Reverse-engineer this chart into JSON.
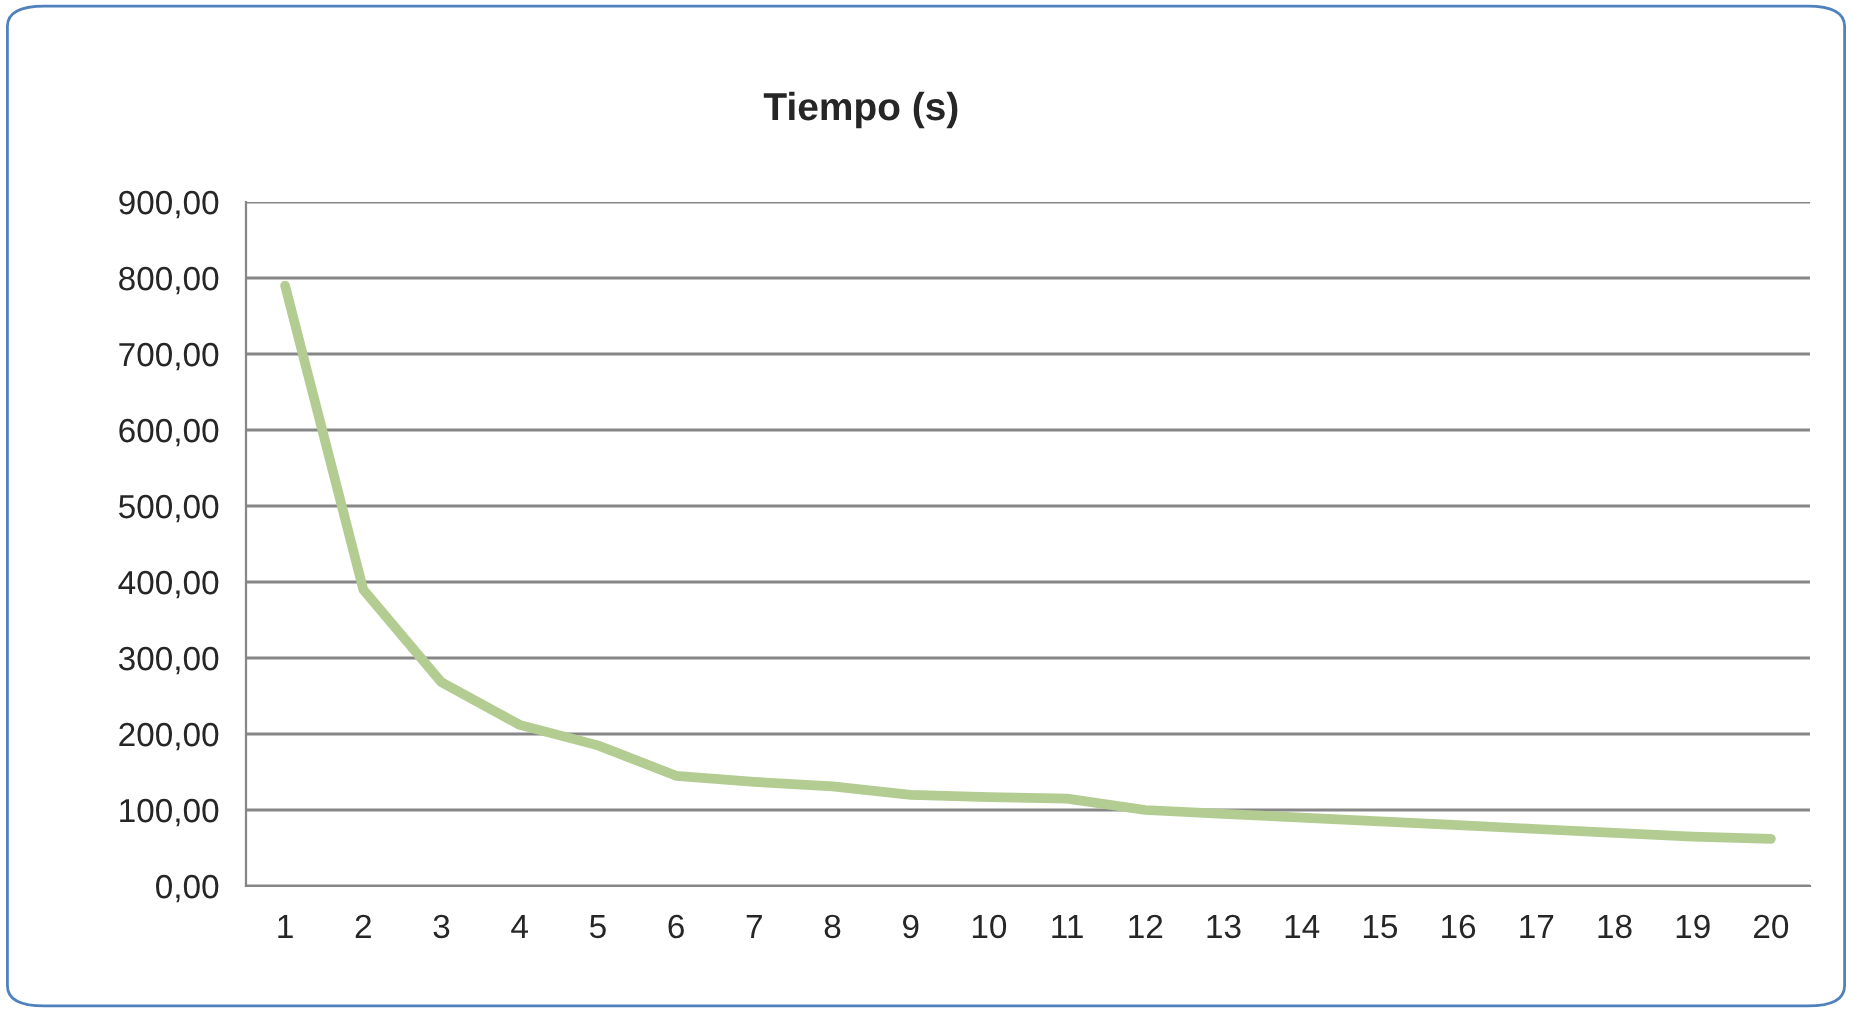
{
  "chart_data": {
    "type": "line",
    "title": "Tiempo (s)",
    "categories": [
      "1",
      "2",
      "3",
      "4",
      "5",
      "6",
      "7",
      "8",
      "9",
      "10",
      "11",
      "12",
      "13",
      "14",
      "15",
      "16",
      "17",
      "18",
      "19",
      "20"
    ],
    "series": [
      {
        "color": "#b3cc91",
        "values": [
          790,
          390,
          268,
          212,
          185,
          145,
          137,
          131,
          120,
          117,
          115,
          100,
          95,
          90,
          85,
          80,
          75,
          70,
          65,
          62
        ]
      }
    ],
    "ylim": [
      0,
      900
    ],
    "yticks": [
      {
        "value": 0,
        "label": "0,00"
      },
      {
        "value": 100,
        "label": "100,00"
      },
      {
        "value": 200,
        "label": "200,00"
      },
      {
        "value": 300,
        "label": "300,00"
      },
      {
        "value": 400,
        "label": "400,00"
      },
      {
        "value": 500,
        "label": "500,00"
      },
      {
        "value": 600,
        "label": "600,00"
      },
      {
        "value": 700,
        "label": "700,00"
      },
      {
        "value": 800,
        "label": "800,00"
      },
      {
        "value": 900,
        "label": "900,00"
      }
    ],
    "grid": "y",
    "legend": false,
    "marker": "none",
    "line_style": "solid"
  }
}
